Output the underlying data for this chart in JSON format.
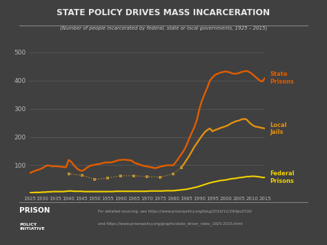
{
  "title": "STATE POLICY DRIVES MASS INCARCERATION",
  "subtitle": "(Number of people incarcerated by federal, state or local governments, 1925 – 2015)",
  "footer_line1": "For detailed sourcing, see https://www.prisonpolicy.org/blog/2016/12/29/bjs2016/",
  "footer_line2": "and https://www.prisonpolicy.org/graphs/state_driver_rates_1925-2015.html",
  "bg_color": "#404040",
  "plot_bg_color": "#404040",
  "grid_color": "#585858",
  "title_color": "#e8e8e8",
  "subtitle_color": "#cccccc",
  "label_color": "#bbbbbb",
  "footer_color": "#aaaaaa",
  "state_color": "#e05c00",
  "local_color": "#e09010",
  "federal_color": "#f0d000",
  "local_dotted_color": "#b89030",
  "ylim": [
    0,
    520
  ],
  "yticks": [
    0,
    100,
    200,
    300,
    400,
    500
  ],
  "state_prisons": {
    "years": [
      1925,
      1926,
      1927,
      1928,
      1929,
      1930,
      1931,
      1932,
      1933,
      1934,
      1935,
      1936,
      1937,
      1938,
      1939,
      1940,
      1941,
      1942,
      1943,
      1944,
      1945,
      1946,
      1947,
      1948,
      1949,
      1950,
      1951,
      1952,
      1953,
      1954,
      1955,
      1956,
      1957,
      1958,
      1959,
      1960,
      1961,
      1962,
      1963,
      1964,
      1965,
      1966,
      1967,
      1968,
      1969,
      1970,
      1971,
      1972,
      1973,
      1974,
      1975,
      1976,
      1977,
      1978,
      1979,
      1980,
      1981,
      1982,
      1983,
      1984,
      1985,
      1986,
      1987,
      1988,
      1989,
      1990,
      1991,
      1992,
      1993,
      1994,
      1995,
      1996,
      1997,
      1998,
      1999,
      2000,
      2001,
      2002,
      2003,
      2004,
      2005,
      2006,
      2007,
      2008,
      2009,
      2010,
      2011,
      2012,
      2013,
      2014,
      2015
    ],
    "values": [
      72,
      76,
      80,
      83,
      86,
      90,
      96,
      100,
      98,
      96,
      97,
      96,
      95,
      94,
      93,
      119,
      112,
      100,
      90,
      83,
      80,
      84,
      92,
      97,
      100,
      102,
      104,
      105,
      108,
      110,
      110,
      110,
      112,
      115,
      118,
      119,
      120,
      119,
      118,
      117,
      110,
      106,
      103,
      100,
      97,
      96,
      94,
      92,
      90,
      92,
      95,
      97,
      99,
      100,
      100,
      100,
      112,
      125,
      138,
      152,
      170,
      193,
      214,
      234,
      260,
      300,
      330,
      353,
      375,
      400,
      411,
      420,
      424,
      428,
      430,
      432,
      430,
      427,
      424,
      424,
      426,
      430,
      432,
      434,
      430,
      424,
      416,
      408,
      400,
      396,
      409
    ]
  },
  "local_jails_solid": {
    "years": [
      1983,
      1984,
      1985,
      1986,
      1987,
      1988,
      1989,
      1990,
      1991,
      1992,
      1993,
      1994,
      1995,
      1996,
      1997,
      1998,
      1999,
      2000,
      2001,
      2002,
      2003,
      2004,
      2005,
      2006,
      2007,
      2008,
      2009,
      2010,
      2011,
      2012,
      2013,
      2014,
      2015
    ],
    "values": [
      92,
      104,
      118,
      132,
      148,
      165,
      178,
      192,
      205,
      217,
      225,
      230,
      220,
      225,
      228,
      232,
      235,
      238,
      242,
      248,
      252,
      256,
      258,
      262,
      264,
      262,
      252,
      244,
      238,
      236,
      234,
      232,
      230
    ]
  },
  "local_jails_dotted": {
    "years": [
      1940,
      1945,
      1950,
      1955,
      1960,
      1965,
      1970,
      1975,
      1980,
      1983
    ],
    "values": [
      70,
      65,
      50,
      55,
      63,
      63,
      60,
      58,
      70,
      92
    ]
  },
  "federal_prisons": {
    "years": [
      1925,
      1926,
      1927,
      1928,
      1929,
      1930,
      1931,
      1932,
      1933,
      1934,
      1935,
      1936,
      1937,
      1938,
      1939,
      1940,
      1941,
      1942,
      1943,
      1944,
      1945,
      1946,
      1947,
      1948,
      1949,
      1950,
      1951,
      1952,
      1953,
      1954,
      1955,
      1956,
      1957,
      1958,
      1959,
      1960,
      1961,
      1962,
      1963,
      1964,
      1965,
      1966,
      1967,
      1968,
      1969,
      1970,
      1971,
      1972,
      1973,
      1974,
      1975,
      1976,
      1977,
      1978,
      1979,
      1980,
      1981,
      1982,
      1983,
      1984,
      1985,
      1986,
      1987,
      1988,
      1989,
      1990,
      1991,
      1992,
      1993,
      1994,
      1995,
      1996,
      1997,
      1998,
      1999,
      2000,
      2001,
      2002,
      2003,
      2004,
      2005,
      2006,
      2007,
      2008,
      2009,
      2010,
      2011,
      2012,
      2013,
      2014,
      2015
    ],
    "values": [
      3,
      3,
      4,
      4,
      4,
      5,
      5,
      6,
      6,
      7,
      7,
      7,
      7,
      7,
      8,
      9,
      9,
      8,
      8,
      8,
      8,
      7,
      7,
      7,
      7,
      7,
      7,
      7,
      7,
      7,
      7,
      7,
      7,
      8,
      8,
      8,
      8,
      8,
      8,
      8,
      8,
      8,
      8,
      8,
      8,
      8,
      9,
      9,
      9,
      9,
      9,
      9,
      10,
      10,
      10,
      10,
      11,
      12,
      13,
      14,
      15,
      17,
      19,
      21,
      23,
      26,
      29,
      32,
      35,
      38,
      40,
      42,
      44,
      46,
      47,
      48,
      50,
      52,
      53,
      54,
      56,
      57,
      58,
      60,
      60,
      61,
      61,
      60,
      59,
      57,
      57
    ]
  }
}
